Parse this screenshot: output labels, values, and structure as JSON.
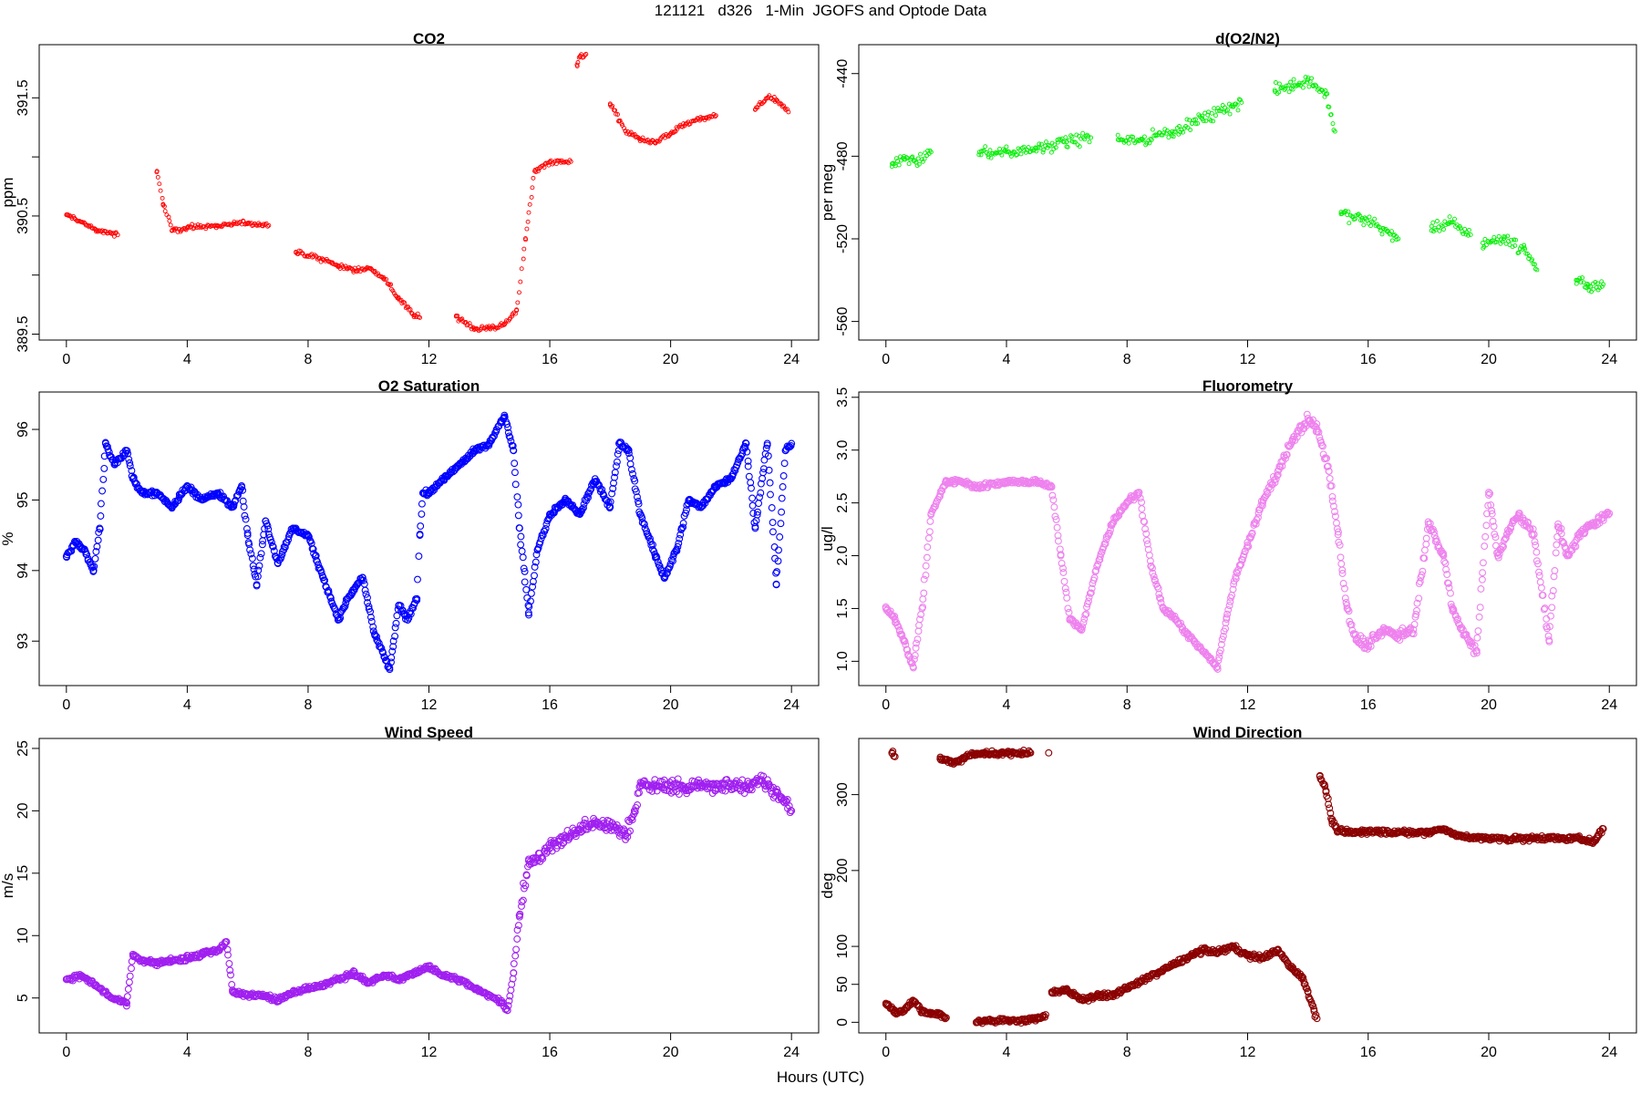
{
  "figure": {
    "title": "121121   d326   1-Min  JGOFS and Optode Data",
    "xlabel": "Hours (UTC)"
  },
  "chart_data": [
    {
      "type": "scatter",
      "title": "CO2",
      "ylabel": "ppm",
      "color": "#ff0000",
      "xlim": [
        -0.9,
        24.9
      ],
      "ylim": [
        389.45,
        391.95
      ],
      "xticks": [
        0,
        4,
        8,
        12,
        16,
        20,
        24
      ],
      "yticks": [
        389.5,
        390.0,
        390.5,
        391.0,
        391.5
      ],
      "ytick_labels": [
        "389.5",
        "",
        "390.5",
        "",
        "391.5"
      ],
      "point_size": "small",
      "segments": [
        {
          "x": [
            0.0,
            0.5,
            1.0,
            1.5,
            1.7
          ],
          "y": [
            390.51,
            390.45,
            390.38,
            390.35,
            390.34
          ]
        },
        {
          "x": [
            3.0,
            3.2,
            3.5,
            4.0,
            5.0,
            6.0,
            6.7
          ],
          "y": [
            390.88,
            390.6,
            390.38,
            390.4,
            390.42,
            390.44,
            390.42
          ]
        },
        {
          "x": [
            7.6,
            8.5,
            9.0,
            9.5,
            10.0,
            10.5,
            11.0,
            11.5,
            11.7
          ],
          "y": [
            390.19,
            390.13,
            390.08,
            390.04,
            390.06,
            389.98,
            389.8,
            389.66,
            389.64
          ]
        },
        {
          "x": [
            12.9,
            13.5,
            14.0,
            14.5,
            14.9,
            15.2,
            15.5,
            16.0,
            16.7
          ],
          "y": [
            389.65,
            389.55,
            389.55,
            389.58,
            389.7,
            390.3,
            390.88,
            390.96,
            390.96
          ]
        },
        {
          "x": [
            16.9,
            17.0,
            17.2
          ],
          "y": [
            391.78,
            391.85,
            391.87
          ]
        },
        {
          "x": [
            18.0,
            18.5,
            19.0,
            19.5,
            20.0,
            20.5,
            21.0,
            21.5
          ],
          "y": [
            391.45,
            391.22,
            391.15,
            391.12,
            391.2,
            391.28,
            391.32,
            391.35
          ]
        },
        {
          "x": [
            22.8,
            23.2,
            23.5,
            23.9
          ],
          "y": [
            391.4,
            391.5,
            391.48,
            391.38
          ]
        }
      ]
    },
    {
      "type": "scatter",
      "title": "d(O2/N2)",
      "ylabel": "per meg",
      "color": "#00ee00",
      "xlim": [
        -0.9,
        24.9
      ],
      "ylim": [
        -569,
        -426
      ],
      "xticks": [
        0,
        4,
        8,
        12,
        16,
        20,
        24
      ],
      "yticks": [
        -560,
        -520,
        -480,
        -440
      ],
      "ytick_labels": [
        "-560",
        "-520",
        "-480",
        "-440"
      ],
      "point_size": "small",
      "segments": [
        {
          "x": [
            0.2,
            0.6,
            1.0,
            1.5
          ],
          "y": [
            -485,
            -480,
            -483,
            -478
          ]
        },
        {
          "x": [
            3.1,
            4.0,
            5.0,
            6.0,
            6.8
          ],
          "y": [
            -478,
            -478,
            -476,
            -473,
            -471
          ]
        },
        {
          "x": [
            7.7,
            8.5,
            9.5,
            10.5,
            11.5,
            11.8
          ],
          "y": [
            -472,
            -472,
            -468,
            -462,
            -456,
            -454
          ]
        },
        {
          "x": [
            12.9,
            13.5,
            14.0,
            14.6,
            14.9
          ],
          "y": [
            -448,
            -446,
            -443,
            -450,
            -468
          ]
        },
        {
          "x": [
            15.1,
            15.8,
            16.5,
            17.0
          ],
          "y": [
            -508,
            -510,
            -515,
            -520
          ]
        },
        {
          "x": [
            18.1,
            18.7,
            19.4
          ],
          "y": [
            -516,
            -512,
            -518
          ]
        },
        {
          "x": [
            19.8,
            20.5,
            21.2,
            21.6
          ],
          "y": [
            -522,
            -520,
            -525,
            -535
          ]
        },
        {
          "x": [
            22.9,
            23.3,
            23.8
          ],
          "y": [
            -540,
            -543,
            -542
          ]
        }
      ]
    },
    {
      "type": "scatter",
      "title": "O2 Saturation",
      "ylabel": "%",
      "color": "#0000ff",
      "xlim": [
        -0.9,
        24.9
      ],
      "ylim": [
        92.37,
        96.53
      ],
      "xticks": [
        0,
        4,
        8,
        12,
        16,
        20,
        24
      ],
      "yticks": [
        93,
        94,
        95,
        96
      ],
      "ytick_labels": [
        "93",
        "94",
        "95",
        "96"
      ],
      "point_size": "large",
      "segments": [
        {
          "x": [
            0.0,
            0.3,
            0.6,
            0.9,
            1.1,
            1.3,
            1.6,
            2.0,
            2.2,
            2.5,
            3.0,
            3.5,
            4.0,
            4.5,
            5.0,
            5.5,
            5.8,
            6.0,
            6.3,
            6.6,
            7.0,
            7.5,
            8.0,
            8.5,
            9.0,
            9.3,
            9.8,
            10.2,
            10.7,
            11.0,
            11.3,
            11.6,
            11.7,
            11.8,
            12.0,
            12.5,
            13.0,
            13.5,
            14.0,
            14.5,
            14.8,
            15.0,
            15.3,
            15.6,
            16.0,
            16.5,
            17.0,
            17.5,
            18.0,
            18.3,
            18.6,
            19.0,
            19.5,
            19.8,
            20.2,
            20.6,
            21.0,
            21.5,
            22.0,
            22.5,
            22.8,
            23.2,
            23.5,
            23.8,
            24.0
          ],
          "y": [
            94.2,
            94.4,
            94.3,
            94.0,
            94.6,
            95.8,
            95.5,
            95.7,
            95.3,
            95.1,
            95.1,
            94.9,
            95.2,
            95.0,
            95.1,
            94.9,
            95.2,
            94.5,
            93.8,
            94.7,
            94.1,
            94.6,
            94.5,
            93.9,
            93.3,
            93.6,
            93.9,
            93.1,
            92.6,
            93.5,
            93.3,
            93.6,
            94.5,
            95.1,
            95.1,
            95.3,
            95.5,
            95.7,
            95.8,
            96.2,
            95.7,
            94.6,
            93.4,
            94.3,
            94.8,
            95.0,
            94.8,
            95.3,
            94.9,
            95.8,
            95.7,
            94.8,
            94.2,
            93.9,
            94.3,
            95.0,
            94.9,
            95.2,
            95.3,
            95.8,
            94.6,
            95.8,
            93.8,
            95.7,
            95.8
          ]
        }
      ]
    },
    {
      "type": "scatter",
      "title": "Fluorometry",
      "ylabel": "ug/l",
      "color": "#ee82ee",
      "xlim": [
        -0.9,
        24.9
      ],
      "ylim": [
        0.77,
        3.55
      ],
      "xticks": [
        0,
        4,
        8,
        12,
        16,
        20,
        24
      ],
      "yticks": [
        1.0,
        1.5,
        2.0,
        2.5,
        3.0,
        3.5
      ],
      "ytick_labels": [
        "1.0",
        "1.5",
        "2.0",
        "2.5",
        "3.0",
        "3.5"
      ],
      "point_size": "large",
      "segments": [
        {
          "x": [
            0.0,
            0.3,
            0.6,
            0.9,
            1.2,
            1.5,
            2.0,
            2.5,
            3.0,
            4.0,
            5.0,
            5.5,
            5.8,
            6.1,
            6.5,
            7.0,
            7.5,
            8.0,
            8.4,
            8.8,
            9.2,
            9.6,
            10.0,
            10.5,
            11.0,
            11.3,
            11.6,
            12.0,
            12.5,
            13.0,
            13.5,
            14.0,
            14.3,
            14.7,
            15.0,
            15.3,
            15.6,
            16.0,
            16.5,
            17.0,
            17.5,
            18.0,
            18.5,
            18.8,
            19.2,
            19.6,
            20.0,
            20.3,
            20.6,
            21.0,
            21.5,
            22.0,
            22.3,
            22.6,
            23.0,
            23.5,
            24.0
          ],
          "y": [
            1.5,
            1.4,
            1.2,
            0.95,
            1.5,
            2.4,
            2.7,
            2.7,
            2.65,
            2.7,
            2.7,
            2.65,
            2.0,
            1.4,
            1.3,
            1.9,
            2.3,
            2.5,
            2.6,
            1.9,
            1.5,
            1.4,
            1.25,
            1.1,
            0.95,
            1.4,
            1.8,
            2.1,
            2.5,
            2.8,
            3.1,
            3.3,
            3.2,
            2.8,
            2.2,
            1.5,
            1.2,
            1.15,
            1.3,
            1.25,
            1.3,
            2.3,
            2.0,
            1.5,
            1.25,
            1.1,
            2.6,
            2.0,
            2.2,
            2.4,
            2.2,
            1.2,
            2.3,
            2.0,
            2.2,
            2.3,
            2.4
          ]
        }
      ]
    },
    {
      "type": "scatter",
      "title": "Wind Speed",
      "ylabel": "m/s",
      "color": "#a020f0",
      "xlim": [
        -0.9,
        24.9
      ],
      "ylim": [
        2.2,
        25.8
      ],
      "xticks": [
        0,
        4,
        8,
        12,
        16,
        20,
        24
      ],
      "yticks": [
        5,
        10,
        15,
        20,
        25
      ],
      "ytick_labels": [
        "5",
        "10",
        "15",
        "20",
        "25"
      ],
      "point_size": "large",
      "segments": [
        {
          "x": [
            0.0,
            0.5,
            1.0,
            1.5,
            2.0,
            2.2,
            2.5,
            3.0,
            3.5,
            4.0,
            4.5,
            5.0,
            5.3,
            5.5,
            6.0,
            6.5,
            7.0,
            7.5,
            8.0,
            8.5,
            9.0,
            9.5,
            10.0,
            10.5,
            11.0,
            11.5,
            12.0,
            12.5,
            13.0,
            13.5,
            14.0,
            14.4,
            14.6,
            14.8,
            15.0,
            15.3,
            15.6,
            16.0,
            16.5,
            17.0,
            17.5,
            18.0,
            18.5,
            18.8,
            19.0,
            19.5,
            20.0,
            20.5,
            21.0,
            21.5,
            22.0,
            22.5,
            23.0,
            23.5,
            24.0
          ],
          "y": [
            6.5,
            6.8,
            6.0,
            5.0,
            4.6,
            8.5,
            8.0,
            7.8,
            8.0,
            8.2,
            8.5,
            8.8,
            9.5,
            5.5,
            5.2,
            5.3,
            4.8,
            5.5,
            5.8,
            6.0,
            6.5,
            7.0,
            6.2,
            6.8,
            6.5,
            7.0,
            7.5,
            6.8,
            6.5,
            5.8,
            5.2,
            4.6,
            4.0,
            7.0,
            11.5,
            16.0,
            16.2,
            17.0,
            17.8,
            18.5,
            19.0,
            18.8,
            18.0,
            20.0,
            22.0,
            22.0,
            22.0,
            21.8,
            22.2,
            21.8,
            22.2,
            22.0,
            22.5,
            21.5,
            20.0
          ]
        }
      ]
    },
    {
      "type": "scatter",
      "title": "Wind Direction",
      "ylabel": "deg",
      "color": "#8b0000",
      "xlim": [
        -0.9,
        24.9
      ],
      "ylim": [
        -14,
        374
      ],
      "xticks": [
        0,
        4,
        8,
        12,
        16,
        20,
        24
      ],
      "yticks": [
        0,
        50,
        100,
        200,
        300
      ],
      "ytick_labels": [
        "0",
        "50",
        "100",
        "200",
        "300"
      ],
      "point_size": "large",
      "segments": [
        {
          "x": [
            0.0,
            0.3,
            0.6,
            0.9,
            1.2,
            1.5,
            1.8,
            2.0
          ],
          "y": [
            25,
            12,
            15,
            28,
            15,
            12,
            10,
            6
          ]
        },
        {
          "x": [
            0.2,
            0.3
          ],
          "y": [
            355,
            350
          ]
        },
        {
          "x": [
            1.8,
            2.3,
            2.8,
            3.3,
            3.8,
            4.3,
            4.8
          ],
          "y": [
            347,
            342,
            352,
            355,
            354,
            355,
            355
          ]
        },
        {
          "x": [
            5.4
          ],
          "y": [
            355
          ]
        },
        {
          "x": [
            3.0,
            3.4,
            3.6,
            4.2,
            4.6,
            5.0,
            5.3
          ],
          "y": [
            0,
            3,
            2,
            3,
            2,
            5,
            10
          ]
        },
        {
          "x": [
            5.5,
            6.0,
            6.5,
            7.0,
            7.5,
            8.0,
            8.5,
            9.0,
            9.5,
            10.0,
            10.5,
            11.0,
            11.5,
            12.0,
            12.5,
            13.0,
            13.5,
            13.8,
            14.0,
            14.3
          ],
          "y": [
            40,
            42,
            30,
            35,
            35,
            45,
            55,
            65,
            75,
            85,
            95,
            92,
            100,
            88,
            85,
            95,
            70,
            60,
            40,
            5
          ]
        },
        {
          "x": [
            14.4,
            14.6,
            14.8,
            15.0,
            15.5,
            16.0,
            17.0,
            18.0,
            18.5,
            19.0,
            20.0,
            21.0,
            22.0,
            23.0,
            23.5,
            23.8
          ],
          "y": [
            325,
            305,
            265,
            252,
            250,
            252,
            250,
            250,
            255,
            245,
            242,
            242,
            243,
            242,
            238,
            255
          ]
        }
      ]
    }
  ]
}
